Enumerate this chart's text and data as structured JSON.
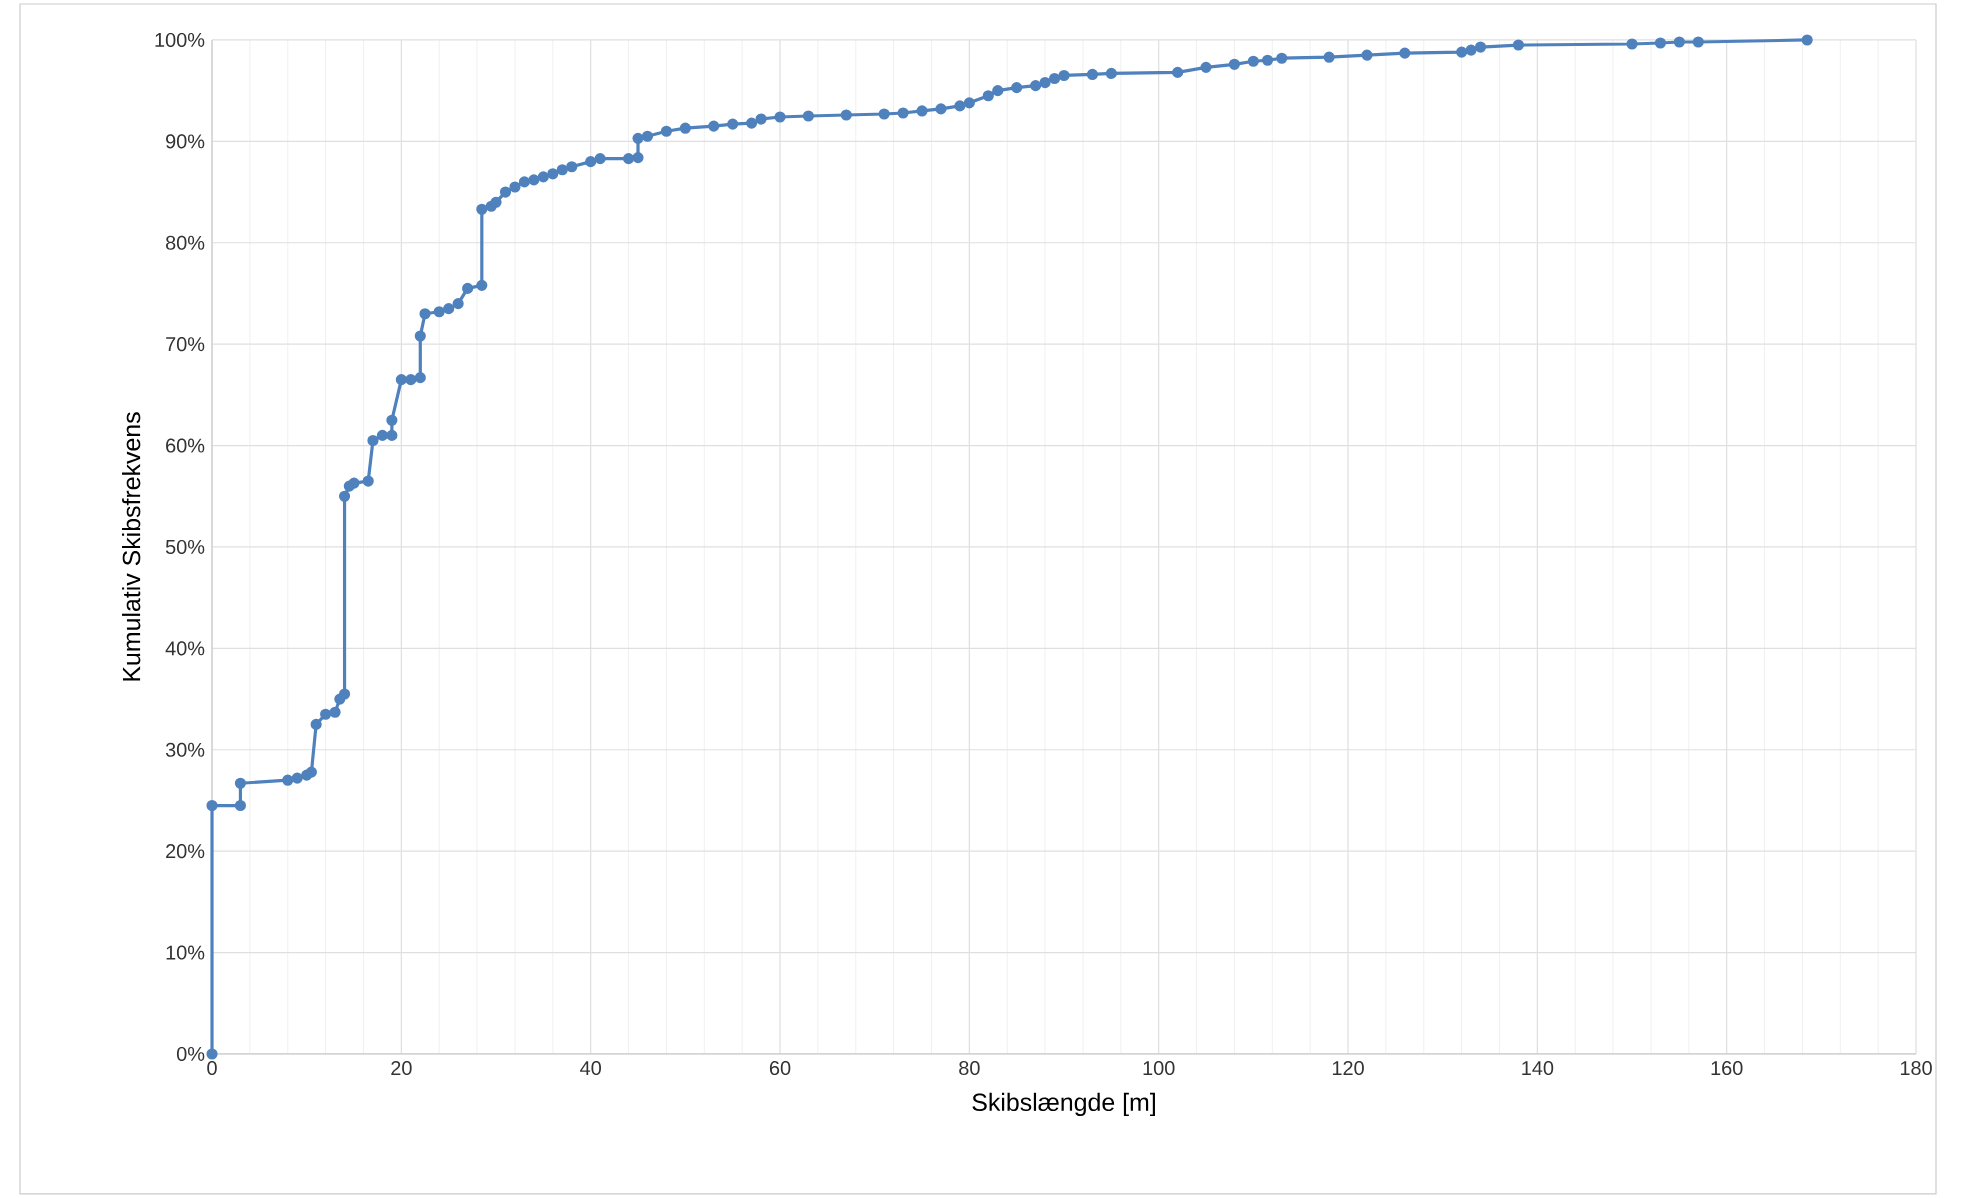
{
  "chart_data": {
    "type": "line",
    "xlabel": "Skibslængde [m]",
    "ylabel": "Kumulativ Skibsfrekvens",
    "xlim": [
      0,
      180
    ],
    "xticks": [
      0,
      20,
      40,
      60,
      80,
      100,
      120,
      140,
      160,
      180
    ],
    "ylim": [
      0,
      100
    ],
    "yticks": [
      {
        "value": 0,
        "label": "0%"
      },
      {
        "value": 10,
        "label": "10%"
      },
      {
        "value": 20,
        "label": "20%"
      },
      {
        "value": 30,
        "label": "30%"
      },
      {
        "value": 40,
        "label": "40%"
      },
      {
        "value": 50,
        "label": "50%"
      },
      {
        "value": 60,
        "label": "60%"
      },
      {
        "value": 70,
        "label": "70%"
      },
      {
        "value": 80,
        "label": "80%"
      },
      {
        "value": 90,
        "label": "90%"
      },
      {
        "value": 100,
        "label": "100%"
      }
    ],
    "grid": true,
    "marker": "circle",
    "line_style": "solid",
    "series": [
      {
        "color": "#4f81bd",
        "x": [
          0,
          0,
          3,
          3,
          8,
          9,
          10,
          10.5,
          11,
          12,
          13,
          13.5,
          14,
          14,
          14.5,
          15,
          16.5,
          17,
          18,
          19,
          19,
          20,
          21,
          22,
          22,
          22.5,
          24,
          25,
          26,
          27,
          28.5,
          28.5,
          29.5,
          30,
          31,
          32,
          33,
          34,
          35,
          36,
          37,
          38,
          40,
          41,
          44,
          45,
          45,
          46,
          48,
          50,
          53,
          55,
          57,
          58,
          60,
          63,
          67,
          71,
          73,
          75,
          77,
          79,
          80,
          82,
          83,
          85,
          87,
          88,
          89,
          90,
          93,
          95,
          102,
          105,
          108,
          110,
          111.5,
          113,
          118,
          122,
          126,
          132,
          133,
          134,
          138,
          150,
          153,
          155,
          157,
          168.5
        ],
        "values": [
          0,
          24.5,
          24.5,
          26.7,
          27,
          27.2,
          27.5,
          27.8,
          32.5,
          33.5,
          33.7,
          35,
          35.5,
          55,
          56,
          56.3,
          56.5,
          60.5,
          61,
          61,
          62.5,
          66.5,
          66.5,
          66.7,
          70.8,
          73,
          73.2,
          73.5,
          74,
          75.5,
          75.8,
          83.3,
          83.6,
          84,
          85,
          85.5,
          86,
          86.2,
          86.5,
          86.8,
          87.2,
          87.5,
          88,
          88.3,
          88.3,
          88.4,
          90.3,
          90.5,
          91,
          91.3,
          91.5,
          91.7,
          91.8,
          92.2,
          92.4,
          92.5,
          92.6,
          92.7,
          92.8,
          93,
          93.2,
          93.5,
          93.8,
          94.5,
          95,
          95.3,
          95.5,
          95.8,
          96.2,
          96.5,
          96.6,
          96.7,
          96.8,
          97.3,
          97.6,
          97.9,
          98,
          98.2,
          98.3,
          98.5,
          98.7,
          98.8,
          99,
          99.3,
          99.5,
          99.6,
          99.7,
          99.8,
          99.8,
          100
        ]
      }
    ]
  }
}
